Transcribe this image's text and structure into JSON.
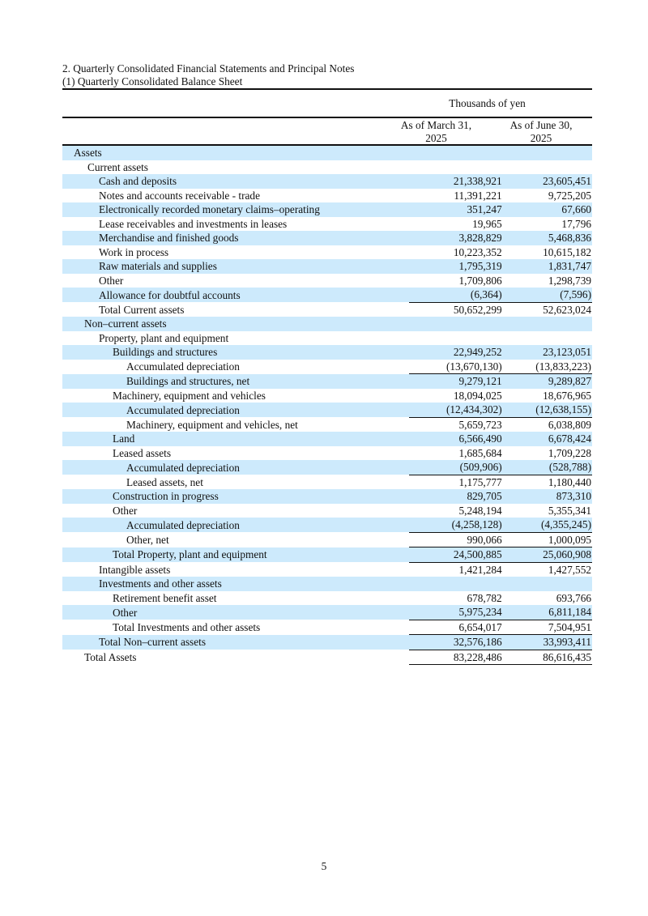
{
  "heading": "2. Quarterly Consolidated Financial Statements and Principal Notes",
  "subheading": "(1) Quarterly Consolidated Balance Sheet",
  "unit": "Thousands of yen",
  "columns": [
    "As of March 31,\n2025",
    "As of June 30,\n2025"
  ],
  "shade_color": "#cdeafc",
  "rows": [
    {
      "label": "Assets",
      "level": 0,
      "v1": "",
      "v2": ""
    },
    {
      "label": "Current assets",
      "level": 1,
      "v1": "",
      "v2": ""
    },
    {
      "label": "Cash and deposits",
      "level": 2,
      "v1": "21,338,921",
      "v2": "23,605,451"
    },
    {
      "label": "Notes and accounts receivable - trade",
      "level": 2,
      "v1": "11,391,221",
      "v2": "9,725,205"
    },
    {
      "label": "Electronically recorded monetary claims–operating",
      "level": 2,
      "v1": "351,247",
      "v2": "67,660"
    },
    {
      "label": "Lease receivables and investments in leases",
      "level": 2,
      "v1": "19,965",
      "v2": "17,796"
    },
    {
      "label": "Merchandise and finished goods",
      "level": 2,
      "v1": "3,828,829",
      "v2": "5,468,836"
    },
    {
      "label": "Work in process",
      "level": 2,
      "v1": "10,223,352",
      "v2": "10,615,182"
    },
    {
      "label": "Raw materials and supplies",
      "level": 2,
      "v1": "1,795,319",
      "v2": "1,831,747"
    },
    {
      "label": "Other",
      "level": 2,
      "v1": "1,709,806",
      "v2": "1,298,739"
    },
    {
      "label": "Allowance for doubtful accounts",
      "level": 2,
      "v1": "(6,364)",
      "v2": "(7,596)"
    },
    {
      "label": "Total Current assets",
      "level": 2,
      "v1": "50,652,299",
      "v2": "52,623,024",
      "total": true
    },
    {
      "label": "Non–current assets",
      "level": 1,
      "v1": "",
      "v2": ""
    },
    {
      "label": "Property, plant and equipment",
      "level": 2,
      "v1": "",
      "v2": ""
    },
    {
      "label": "Buildings and structures",
      "level": 3,
      "v1": "22,949,252",
      "v2": "23,123,051"
    },
    {
      "label": "Accumulated depreciation",
      "level": 4,
      "v1": "(13,670,130)",
      "v2": "(13,833,223)"
    },
    {
      "label": "Buildings and structures, net",
      "level": 4,
      "v1": "9,279,121",
      "v2": "9,289,827",
      "total": true
    },
    {
      "label": "Machinery, equipment and vehicles",
      "level": 3,
      "v1": "18,094,025",
      "v2": "18,676,965"
    },
    {
      "label": "Accumulated depreciation",
      "level": 4,
      "v1": "(12,434,302)",
      "v2": "(12,638,155)"
    },
    {
      "label": "Machinery, equipment and vehicles, net",
      "level": 4,
      "v1": "5,659,723",
      "v2": "6,038,809",
      "total": true
    },
    {
      "label": "Land",
      "level": 3,
      "v1": "6,566,490",
      "v2": "6,678,424"
    },
    {
      "label": "Leased assets",
      "level": 3,
      "v1": "1,685,684",
      "v2": "1,709,228"
    },
    {
      "label": "Accumulated depreciation",
      "level": 4,
      "v1": "(509,906)",
      "v2": "(528,788)"
    },
    {
      "label": "Leased assets, net",
      "level": 4,
      "v1": "1,175,777",
      "v2": "1,180,440",
      "total": true
    },
    {
      "label": "Construction in progress",
      "level": 3,
      "v1": "829,705",
      "v2": "873,310"
    },
    {
      "label": "Other",
      "level": 3,
      "v1": "5,248,194",
      "v2": "5,355,341"
    },
    {
      "label": "Accumulated depreciation",
      "level": 4,
      "v1": "(4,258,128)",
      "v2": "(4,355,245)"
    },
    {
      "label": "Other, net",
      "level": 4,
      "v1": "990,066",
      "v2": "1,000,095",
      "total": true
    },
    {
      "label": "Total Property, plant and equipment",
      "level": 3,
      "v1": "24,500,885",
      "v2": "25,060,908",
      "total": true
    },
    {
      "label": "Intangible assets",
      "level": 2,
      "v1": "1,421,284",
      "v2": "1,427,552",
      "total": true
    },
    {
      "label": "Investments and other assets",
      "level": 2,
      "v1": "",
      "v2": ""
    },
    {
      "label": "Retirement benefit asset",
      "level": 3,
      "v1": "678,782",
      "v2": "693,766"
    },
    {
      "label": "Other",
      "level": 3,
      "v1": "5,975,234",
      "v2": "6,811,184"
    },
    {
      "label": "Total Investments and other assets",
      "level": 3,
      "v1": "6,654,017",
      "v2": "7,504,951",
      "total": true
    },
    {
      "label": "Total Non–current assets",
      "level": 2,
      "v1": "32,576,186",
      "v2": "33,993,411",
      "total": true
    },
    {
      "label": "Total Assets",
      "level": 1,
      "v1": "83,228,486",
      "v2": "86,616,435",
      "total": true,
      "underline": true
    }
  ],
  "page_number": "5"
}
